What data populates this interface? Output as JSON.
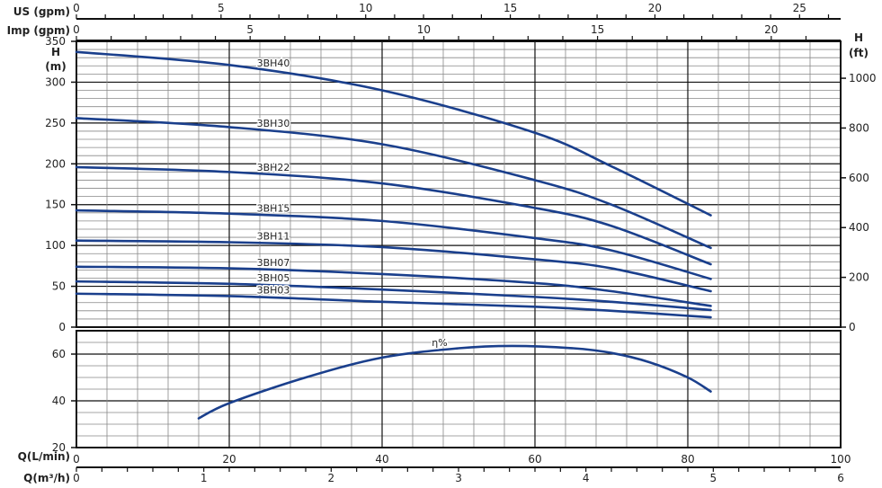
{
  "chart_data": [
    {
      "type": "line",
      "title": "",
      "xlabel": "Q(L/min)",
      "ylabel": "H (m)",
      "ylabel_right": "H (ft)",
      "xlim": [
        0,
        100
      ],
      "ylim": [
        0,
        350
      ],
      "ylim_right_ft": [
        0,
        1148
      ],
      "grid": true,
      "x_ticks": [
        0,
        20,
        40,
        60,
        80,
        100
      ],
      "y_ticks": [
        0,
        50,
        100,
        150,
        200,
        250,
        300,
        350
      ],
      "y_ticks_right": [
        0,
        200,
        400,
        600,
        800,
        1000
      ],
      "secondary_x_axes": [
        {
          "label": "US (gpm)",
          "ticks": [
            0,
            5,
            10,
            15,
            20,
            25
          ],
          "lpm_per_unit": 3.785
        },
        {
          "label": "Imp (gpm)",
          "ticks": [
            0,
            5,
            10,
            15,
            20
          ],
          "lpm_per_unit": 4.546
        },
        {
          "label": "Q(m³/h)",
          "ticks": [
            0,
            1,
            2,
            3,
            4,
            5,
            6
          ],
          "lpm_per_unit": 16.667
        }
      ],
      "x": [
        0,
        20,
        40,
        60,
        70,
        83
      ],
      "series": [
        {
          "name": "3BH40",
          "values": [
            337,
            321,
            290,
            238,
            197,
            137
          ]
        },
        {
          "name": "3BH30",
          "values": [
            256,
            245,
            224,
            180,
            150,
            97
          ]
        },
        {
          "name": "3BH22",
          "values": [
            196,
            190,
            176,
            146,
            124,
            77
          ]
        },
        {
          "name": "3BH15",
          "values": [
            143,
            139,
            130,
            109,
            94,
            59
          ]
        },
        {
          "name": "3BH11",
          "values": [
            106,
            104,
            98,
            83,
            72,
            44
          ]
        },
        {
          "name": "3BH07",
          "values": [
            74,
            72,
            65,
            54,
            44,
            26
          ]
        },
        {
          "name": "3BH05",
          "values": [
            56,
            53,
            46,
            37,
            31,
            21
          ]
        },
        {
          "name": "3BH03",
          "values": [
            41,
            38,
            31,
            25,
            20,
            12
          ]
        }
      ],
      "line_color": "#1a3f8c"
    },
    {
      "type": "line",
      "title": "",
      "xlim": [
        0,
        100
      ],
      "ylim": [
        20,
        70
      ],
      "grid": true,
      "y_ticks": [
        20,
        40,
        60
      ],
      "x": [
        16,
        20,
        30,
        40,
        50,
        57,
        65,
        70,
        75,
        80,
        83
      ],
      "series": [
        {
          "name": "η%",
          "values": [
            32.5,
            39,
            50,
            58.5,
            62.5,
            63.5,
            62.5,
            60.5,
            56.5,
            50,
            44
          ]
        }
      ],
      "line_color": "#1a3f8c"
    }
  ]
}
